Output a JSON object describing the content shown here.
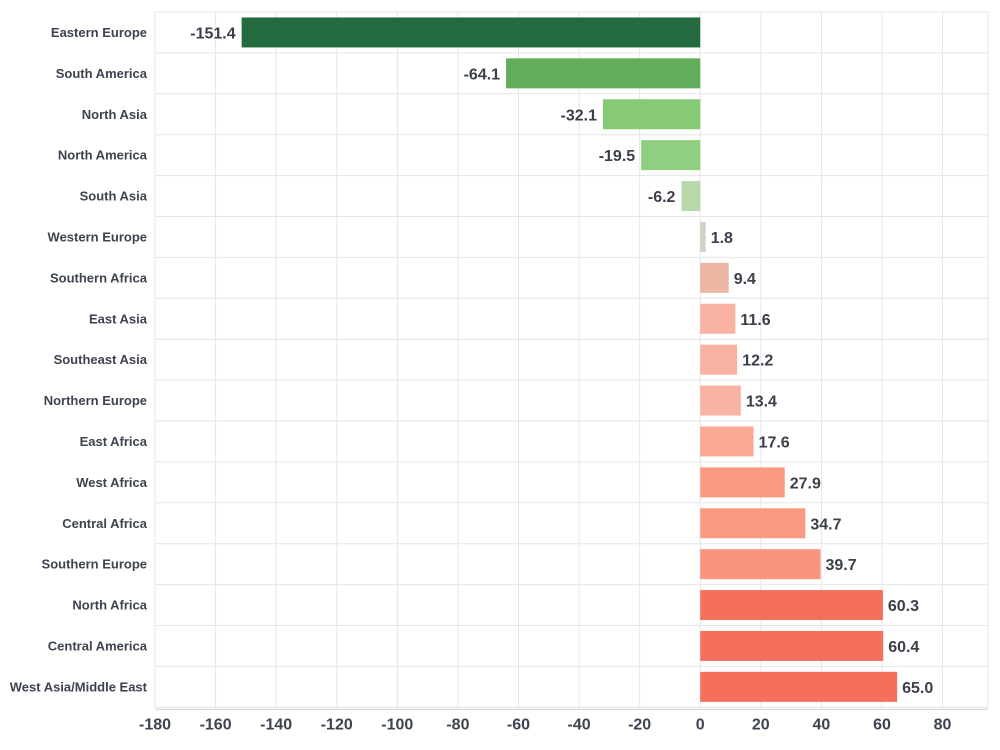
{
  "chart_data": {
    "type": "bar",
    "orientation": "horizontal",
    "title": "",
    "xlabel": "",
    "ylabel": "",
    "categories": [
      "Eastern Europe",
      "South America",
      "North Asia",
      "North America",
      "South Asia",
      "Western Europe",
      "Southern Africa",
      "East Asia",
      "Southeast Asia",
      "Northern Europe",
      "East Africa",
      "West Africa",
      "Central Africa",
      "Southern Europe",
      "North Africa",
      "Central America",
      "West Asia/Middle East"
    ],
    "values": [
      -151.4,
      -64.1,
      -32.1,
      -19.5,
      -6.2,
      1.8,
      9.4,
      11.6,
      12.2,
      13.4,
      17.6,
      27.9,
      34.7,
      39.7,
      60.3,
      60.4,
      65.0
    ],
    "value_labels": [
      "-151.4",
      "-64.1",
      "-32.1",
      "-19.5",
      "-6.2",
      "1.8",
      "9.4",
      "11.6",
      "12.2",
      "13.4",
      "17.6",
      "27.9",
      "34.7",
      "39.7",
      "60.3",
      "60.4",
      "65.0"
    ],
    "xlim": [
      -180,
      95
    ],
    "x_ticks": [
      -180,
      -160,
      -140,
      -120,
      -100,
      -80,
      -60,
      -40,
      -20,
      0,
      20,
      40,
      60,
      80
    ],
    "x_tick_labels": [
      "-180",
      "-160",
      "-140",
      "-120",
      "-100",
      "-80",
      "-60",
      "-40",
      "-20",
      "0",
      "20",
      "40",
      "60",
      "80"
    ],
    "grid": true,
    "legend": "none",
    "colors": {
      "negative_strong": "#236b3f",
      "negative_medium": "#63ad5a",
      "negative_light": "#86c977",
      "negative_pale": "#b8d8a8",
      "neutral": "#d4cfc7",
      "positive_pale": "#ecb7a2",
      "positive_light": "#f8b3a2",
      "positive_medium": "#fb9a83",
      "positive_strong": "#f46f5c"
    },
    "bar_colors": [
      "#236b3f",
      "#63ad5a",
      "#86c977",
      "#8fcf7f",
      "#b8d8a8",
      "#d4cfc7",
      "#ecb7a2",
      "#f8b3a2",
      "#f8b3a2",
      "#f8b3a2",
      "#faa994",
      "#fb9a83",
      "#fb9a83",
      "#fb947e",
      "#f46f5c",
      "#f46f5c",
      "#f46f5c"
    ]
  }
}
